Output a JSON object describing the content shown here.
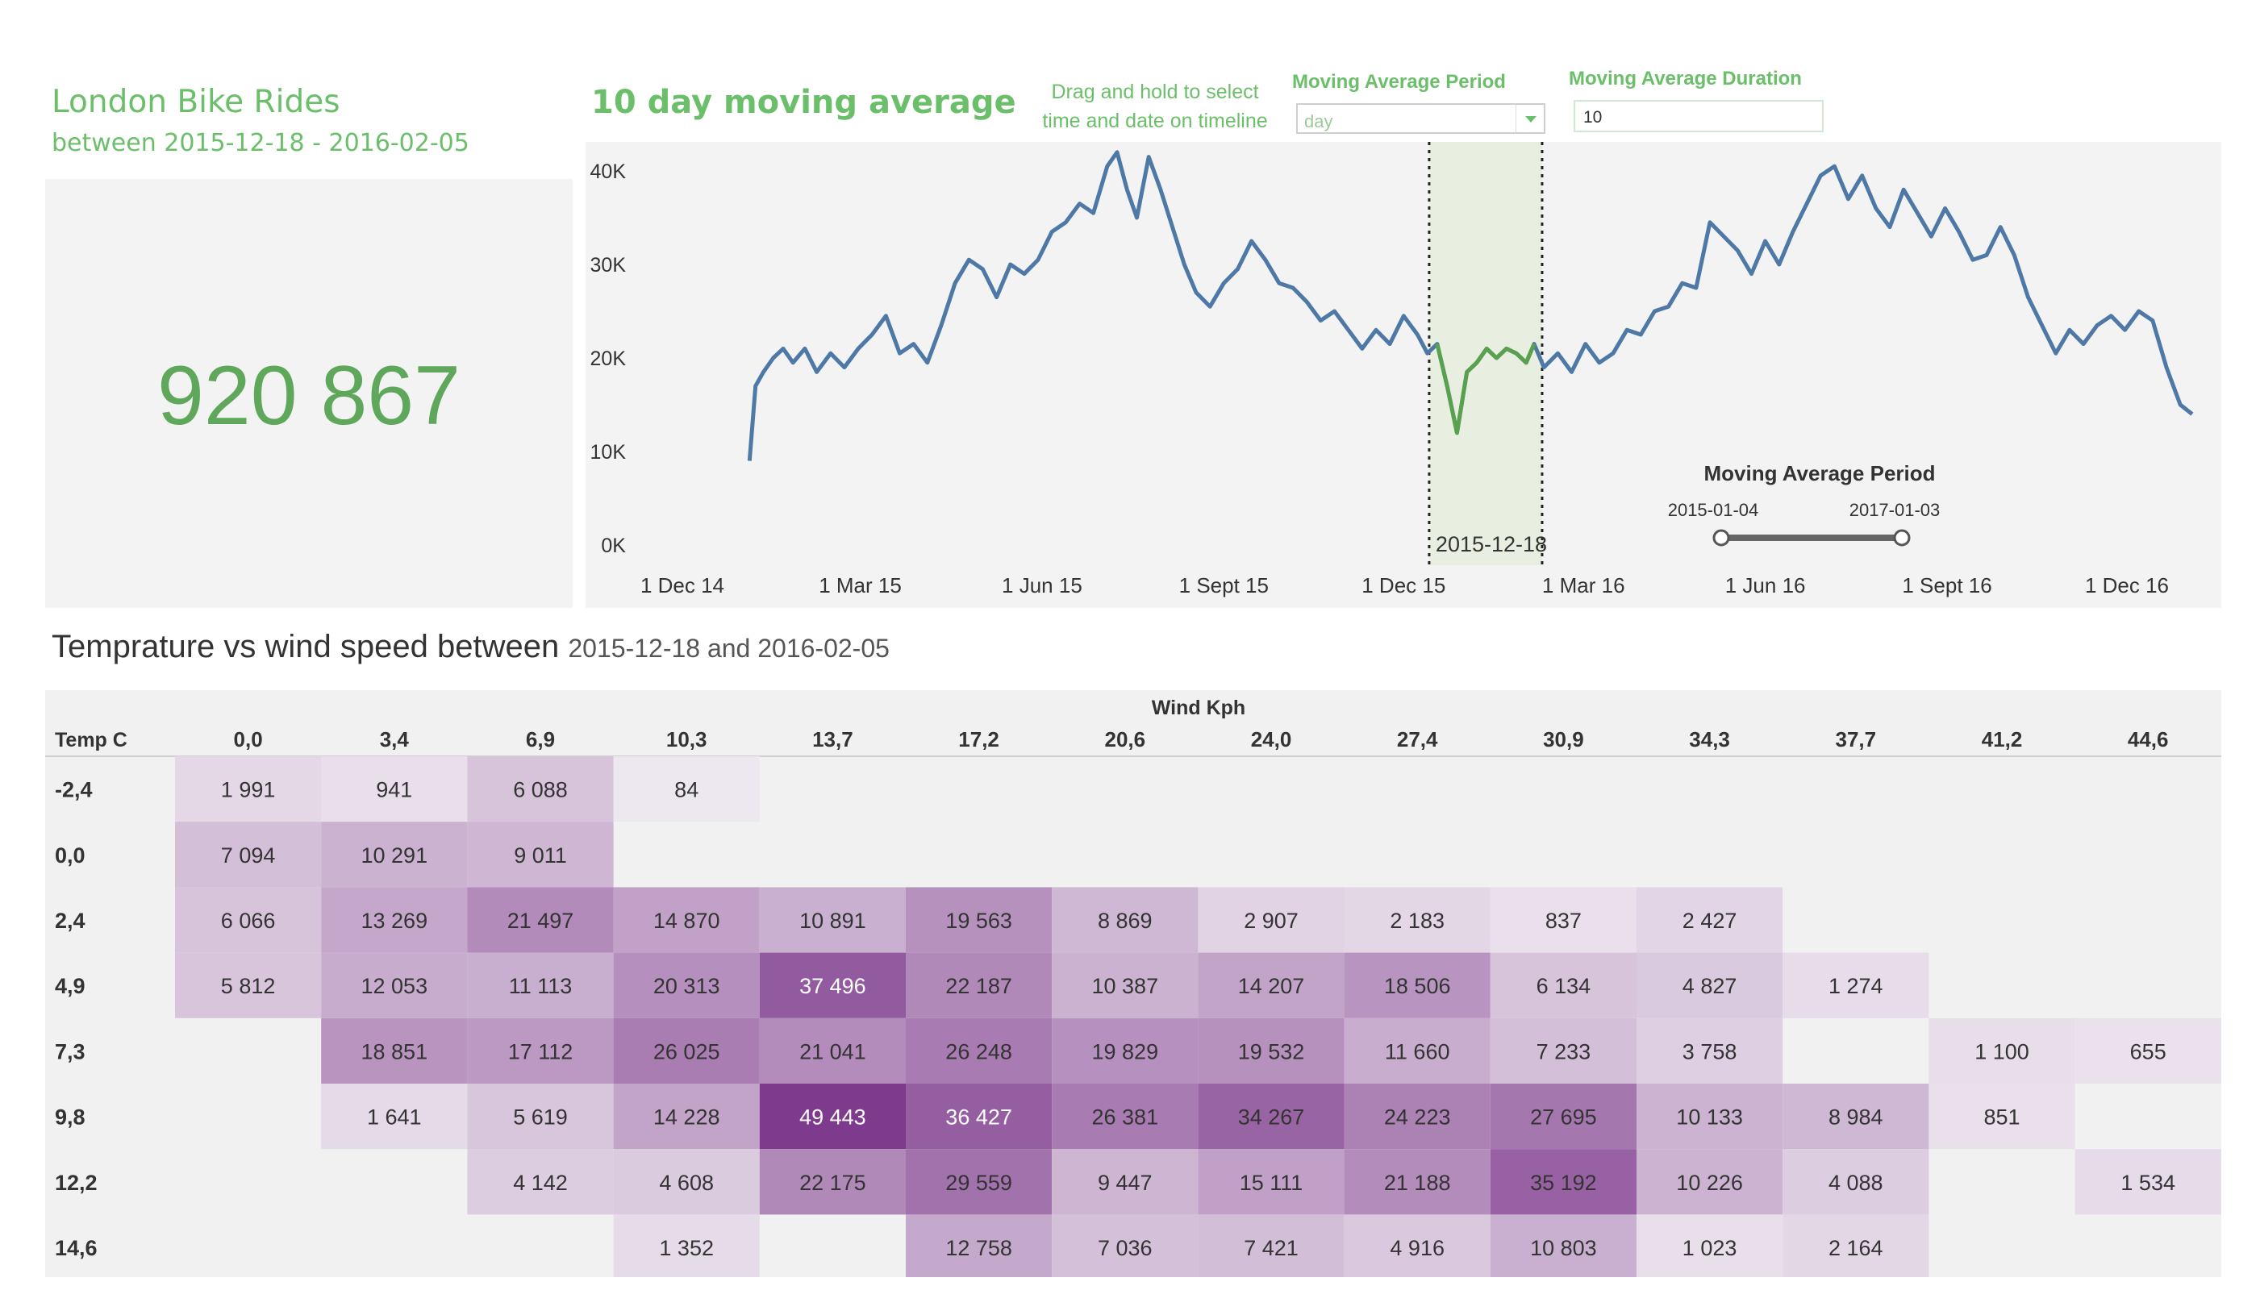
{
  "kpi": {
    "title": "London Bike Rides",
    "subtitle": "between 2015-12-18 - 2016-02-05",
    "value": "920 867"
  },
  "line_chart": {
    "title": "10 day moving average",
    "drag_hint_line1": "Drag and hold to select",
    "drag_hint_line2": "time and date on timeline",
    "controls": {
      "period_label": "Moving Average Period",
      "period_value": "day",
      "duration_label": "Moving Average Duration",
      "duration_value": "10",
      "slider_title": "Moving Average Period",
      "slider_start": "2015-01-04",
      "slider_end": "2017-01-03"
    },
    "selection_label": "2015-12-18",
    "colors": {
      "line": "#4e79a7",
      "selected": "#59a14f",
      "selection_fill": "#e9efe0"
    }
  },
  "heatmap": {
    "title_main": "Temprature vs wind speed between",
    "title_range": "2015-12-18 and 2016-02-05",
    "col_header": "Wind Kph",
    "row_header": "Temp C"
  },
  "chart_data": [
    {
      "type": "line",
      "title": "10 day moving average",
      "xlabel": "",
      "ylabel": "",
      "x_tick_labels": [
        "1 Dec 14",
        "1 Mar 15",
        "1 Jun 15",
        "1 Sept 15",
        "1 Dec 15",
        "1 Mar 16",
        "1 Jun 16",
        "1 Sept 16",
        "1 Dec 16"
      ],
      "y_tick_labels": [
        "0K",
        "10K",
        "20K",
        "30K",
        "40K"
      ],
      "ylim": [
        0,
        43000
      ],
      "grid": false,
      "series": [
        {
          "x": [
            "2015-01-04",
            "2015-01-07",
            "2015-01-11",
            "2015-01-16",
            "2015-01-21",
            "2015-01-26",
            "2015-02-01",
            "2015-02-07",
            "2015-02-14",
            "2015-02-21",
            "2015-02-28",
            "2015-03-07",
            "2015-03-14",
            "2015-03-21",
            "2015-03-28",
            "2015-04-04",
            "2015-04-11",
            "2015-04-18",
            "2015-04-25",
            "2015-05-02",
            "2015-05-09",
            "2015-05-16",
            "2015-05-23",
            "2015-05-30",
            "2015-06-06",
            "2015-06-13",
            "2015-06-20",
            "2015-06-27",
            "2015-07-04",
            "2015-07-09",
            "2015-07-14",
            "2015-07-19",
            "2015-07-25",
            "2015-07-31",
            "2015-08-06",
            "2015-08-12",
            "2015-08-18",
            "2015-08-25",
            "2015-09-01",
            "2015-09-08",
            "2015-09-15",
            "2015-09-22",
            "2015-09-29",
            "2015-10-06",
            "2015-10-13",
            "2015-10-20",
            "2015-10-27",
            "2015-11-03",
            "2015-11-10",
            "2015-11-17",
            "2015-11-24",
            "2015-12-01",
            "2015-12-08",
            "2015-12-13",
            "2015-12-18",
            "2015-12-23",
            "2015-12-28",
            "2016-01-02",
            "2016-01-07",
            "2016-01-12",
            "2016-01-17",
            "2016-01-22",
            "2016-01-27",
            "2016-02-01",
            "2016-02-05",
            "2016-02-10",
            "2016-02-17",
            "2016-02-24",
            "2016-03-02",
            "2016-03-09",
            "2016-03-16",
            "2016-03-23",
            "2016-03-30",
            "2016-04-06",
            "2016-04-13",
            "2016-04-20",
            "2016-04-27",
            "2016-05-04",
            "2016-05-11",
            "2016-05-18",
            "2016-05-25",
            "2016-06-01",
            "2016-06-08",
            "2016-06-15",
            "2016-06-22",
            "2016-06-29",
            "2016-07-06",
            "2016-07-13",
            "2016-07-20",
            "2016-07-27",
            "2016-08-03",
            "2016-08-10",
            "2016-08-17",
            "2016-08-24",
            "2016-08-31",
            "2016-09-07",
            "2016-09-14",
            "2016-09-21",
            "2016-09-28",
            "2016-10-05",
            "2016-10-12",
            "2016-10-19",
            "2016-10-26",
            "2016-11-02",
            "2016-11-09",
            "2016-11-16",
            "2016-11-23",
            "2016-11-30",
            "2016-12-07",
            "2016-12-14",
            "2016-12-21",
            "2016-12-28",
            "2017-01-03"
          ],
          "values": [
            9000,
            17000,
            18500,
            20000,
            21000,
            19500,
            21000,
            18500,
            20500,
            19000,
            21000,
            22500,
            24500,
            20500,
            21500,
            19500,
            23500,
            28000,
            30500,
            29500,
            26500,
            30000,
            29000,
            30500,
            33500,
            34500,
            36500,
            35500,
            40500,
            42000,
            38000,
            35000,
            41500,
            38000,
            34000,
            30000,
            27000,
            25500,
            28000,
            29500,
            32500,
            30500,
            28000,
            27500,
            26000,
            24000,
            25000,
            23000,
            21000,
            23000,
            21500,
            24500,
            22500,
            20500,
            21500,
            17000,
            12000,
            18500,
            19500,
            21000,
            20000,
            21000,
            20500,
            19500,
            21500,
            19000,
            20500,
            18500,
            21500,
            19500,
            20500,
            23000,
            22500,
            25000,
            25500,
            28000,
            27500,
            34500,
            33000,
            31500,
            29000,
            32500,
            30000,
            33500,
            36500,
            39500,
            40500,
            37000,
            39500,
            36000,
            34000,
            38000,
            35500,
            33000,
            36000,
            33500,
            30500,
            31000,
            34000,
            31000,
            26500,
            23500,
            20500,
            23000,
            21500,
            23500,
            24500,
            23000,
            25000,
            24000,
            19000,
            15000,
            14000
          ]
        }
      ],
      "highlight_range": [
        "2015-12-18",
        "2016-02-05"
      ]
    },
    {
      "type": "heatmap",
      "title": "Temprature vs wind speed between 2015-12-18 and 2016-02-05",
      "xlabel": "Wind Kph",
      "ylabel": "Temp C",
      "columns": [
        "0,0",
        "3,4",
        "6,9",
        "10,3",
        "13,7",
        "17,2",
        "20,6",
        "24,0",
        "27,4",
        "30,9",
        "34,3",
        "37,7",
        "41,2",
        "44,6"
      ],
      "rows": [
        "-2,4",
        "0,0",
        "2,4",
        "4,9",
        "7,3",
        "9,8",
        "12,2",
        "14,6"
      ],
      "values": [
        [
          1991,
          941,
          6088,
          84,
          null,
          null,
          null,
          null,
          null,
          null,
          null,
          null,
          null,
          null
        ],
        [
          7094,
          10291,
          9011,
          null,
          null,
          null,
          null,
          null,
          null,
          null,
          null,
          null,
          null,
          null
        ],
        [
          6066,
          13269,
          21497,
          14870,
          10891,
          19563,
          8869,
          2907,
          2183,
          837,
          2427,
          null,
          null,
          null
        ],
        [
          5812,
          12053,
          11113,
          20313,
          37496,
          22187,
          10387,
          14207,
          18506,
          6134,
          4827,
          1274,
          null,
          null
        ],
        [
          null,
          18851,
          17112,
          26025,
          21041,
          26248,
          19829,
          19532,
          11660,
          7233,
          3758,
          null,
          1100,
          655
        ],
        [
          null,
          1641,
          5619,
          14228,
          49443,
          36427,
          26381,
          34267,
          24223,
          27695,
          10133,
          8984,
          851,
          null
        ],
        [
          null,
          null,
          4142,
          4608,
          22175,
          29559,
          9447,
          15111,
          21188,
          35192,
          10226,
          4088,
          null,
          1534
        ],
        [
          null,
          null,
          null,
          1352,
          null,
          12758,
          7036,
          7421,
          4916,
          10803,
          1023,
          2164,
          null,
          null
        ]
      ],
      "value_labels": [
        [
          "1 991",
          "941",
          "6 088",
          "84",
          "",
          "",
          "",
          "",
          "",
          "",
          "",
          "",
          "",
          ""
        ],
        [
          "7 094",
          "10 291",
          "9 011",
          "",
          "",
          "",
          "",
          "",
          "",
          "",
          "",
          "",
          "",
          ""
        ],
        [
          "6 066",
          "13 269",
          "21 497",
          "14 870",
          "10 891",
          "19 563",
          "8 869",
          "2 907",
          "2 183",
          "837",
          "2 427",
          "",
          "",
          ""
        ],
        [
          "5 812",
          "12 053",
          "11 113",
          "20 313",
          "37 496",
          "22 187",
          "10 387",
          "14 207",
          "18 506",
          "6 134",
          "4 827",
          "1 274",
          "",
          ""
        ],
        [
          "",
          "18 851",
          "17 112",
          "26 025",
          "21 041",
          "26 248",
          "19 829",
          "19 532",
          "11 660",
          "7 233",
          "3 758",
          "",
          "1 100",
          "655"
        ],
        [
          "",
          "1 641",
          "5 619",
          "14 228",
          "49 443",
          "36 427",
          "26 381",
          "34 267",
          "24 223",
          "27 695",
          "10 133",
          "8 984",
          "851",
          ""
        ],
        [
          "",
          "",
          "4 142",
          "4 608",
          "22 175",
          "29 559",
          "9 447",
          "15 111",
          "21 188",
          "35 192",
          "10 226",
          "4 088",
          "",
          "1 534"
        ],
        [
          "",
          "",
          "",
          "1 352",
          "",
          "12 758",
          "7 036",
          "7 421",
          "4 916",
          "10 803",
          "1 023",
          "2 164",
          "",
          ""
        ]
      ],
      "color_scale": [
        "#eee8f0",
        "#7e3a8c"
      ]
    }
  ]
}
